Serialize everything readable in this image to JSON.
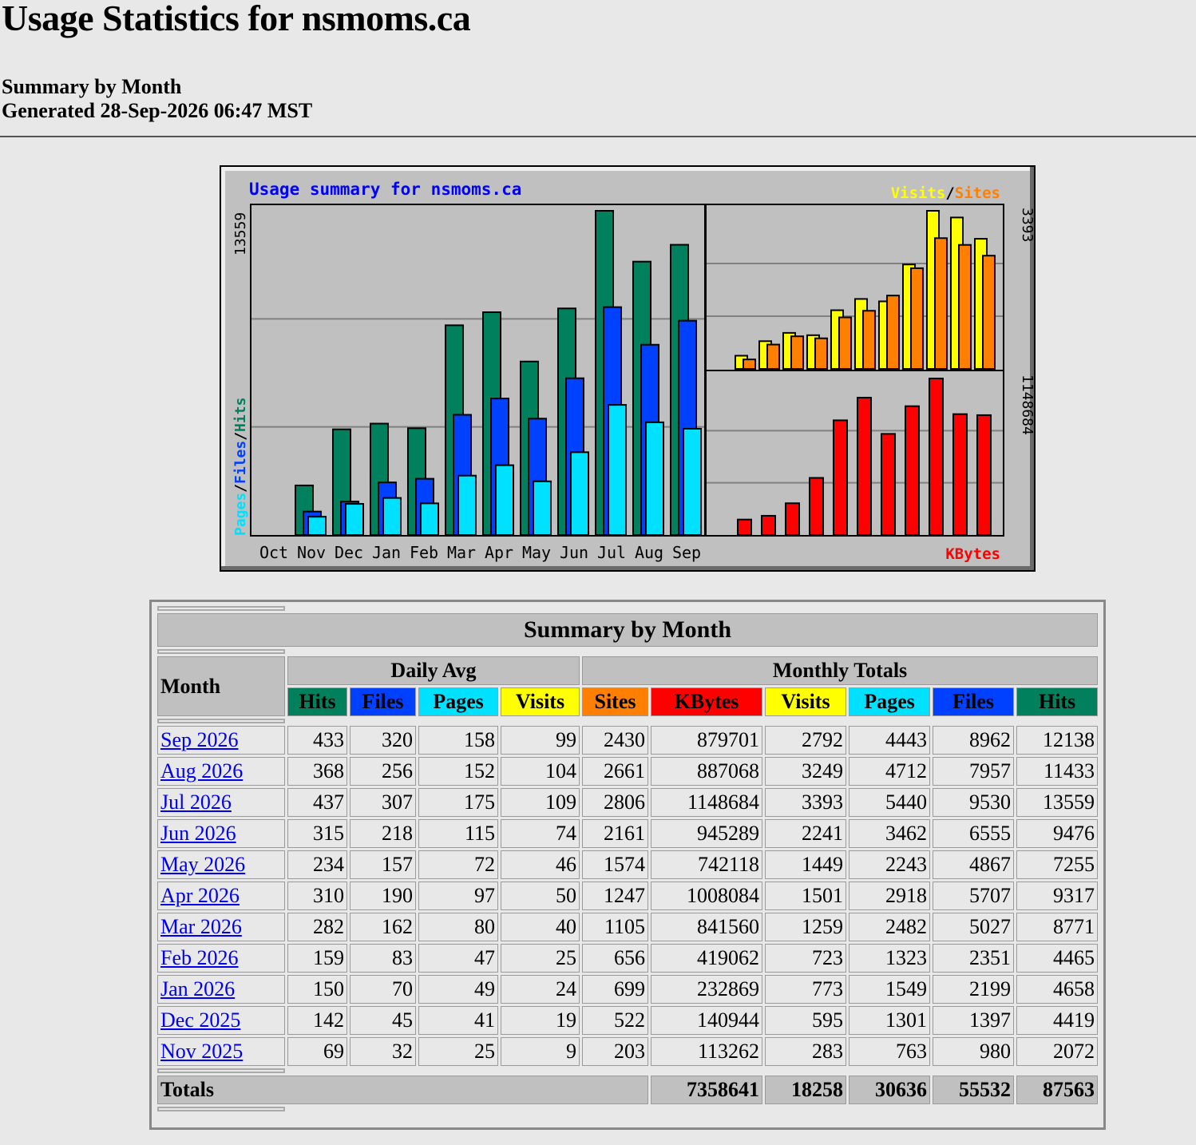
{
  "title": "Usage Statistics for nsmoms.ca",
  "subtitle": "Summary by Month",
  "generated": "Generated 28-Sep-2026 06:47 MST",
  "colors": {
    "hits": "#00805c",
    "files": "#0040ff",
    "pages": "#00e0ff",
    "visits": "#ffff00",
    "sites": "#ff8000",
    "kbytes": "#ff0000",
    "chart_bg": "#c0c0c0",
    "title_blue": "#0000ff"
  },
  "chart_data": {
    "type": "bar",
    "title": "Usage summary for nsmoms.ca",
    "categories": [
      "Oct",
      "Nov",
      "Dec",
      "Jan",
      "Feb",
      "Mar",
      "Apr",
      "May",
      "Jun",
      "Jul",
      "Aug",
      "Sep"
    ],
    "left_axis_max_label": "13559",
    "left_axis_legend": [
      "Pages",
      "/",
      "Files",
      "/",
      "Hits"
    ],
    "right_top_max_label": "3393",
    "right_top_legend": [
      "Visits",
      "/",
      "Sites"
    ],
    "right_bottom_max_label": "1148684",
    "right_bottom_legend": "KBytes",
    "left": {
      "ylim": [
        0,
        13559
      ],
      "series": [
        {
          "name": "Hits",
          "values": [
            0,
            2072,
            4419,
            4658,
            4465,
            8771,
            9317,
            7255,
            9476,
            13559,
            11433,
            12138
          ]
        },
        {
          "name": "Files",
          "values": [
            0,
            980,
            1397,
            2199,
            2351,
            5027,
            5707,
            4867,
            6555,
            9530,
            7957,
            8962
          ]
        },
        {
          "name": "Pages",
          "values": [
            0,
            763,
            1301,
            1549,
            1323,
            2482,
            2918,
            2243,
            3462,
            5440,
            4712,
            4443
          ]
        }
      ]
    },
    "right_top": {
      "ylim": [
        0,
        3393
      ],
      "series": [
        {
          "name": "Visits",
          "values": [
            0,
            283,
            595,
            773,
            723,
            1259,
            1501,
            1449,
            2241,
            3393,
            3249,
            2792
          ]
        },
        {
          "name": "Sites",
          "values": [
            0,
            203,
            522,
            699,
            656,
            1105,
            1247,
            1574,
            2161,
            2806,
            2661,
            2430
          ]
        }
      ]
    },
    "right_bottom": {
      "ylim": [
        0,
        1148684
      ],
      "series": [
        {
          "name": "KBytes",
          "values": [
            0,
            113262,
            140944,
            232869,
            419062,
            841560,
            1008084,
            742118,
            945289,
            1148684,
            887068,
            879701
          ]
        }
      ]
    }
  },
  "table": {
    "caption": "Summary by Month",
    "month_header": "Month",
    "daily_avg_header": "Daily Avg",
    "monthly_totals_header": "Monthly Totals",
    "columns": [
      "Hits",
      "Files",
      "Pages",
      "Visits",
      "Sites",
      "KBytes",
      "Visits",
      "Pages",
      "Files",
      "Hits"
    ],
    "rows": [
      {
        "month": "Sep 2026",
        "cells": [
          "433",
          "320",
          "158",
          "99",
          "2430",
          "879701",
          "2792",
          "4443",
          "8962",
          "12138"
        ]
      },
      {
        "month": "Aug 2026",
        "cells": [
          "368",
          "256",
          "152",
          "104",
          "2661",
          "887068",
          "3249",
          "4712",
          "7957",
          "11433"
        ]
      },
      {
        "month": "Jul 2026",
        "cells": [
          "437",
          "307",
          "175",
          "109",
          "2806",
          "1148684",
          "3393",
          "5440",
          "9530",
          "13559"
        ]
      },
      {
        "month": "Jun 2026",
        "cells": [
          "315",
          "218",
          "115",
          "74",
          "2161",
          "945289",
          "2241",
          "3462",
          "6555",
          "9476"
        ]
      },
      {
        "month": "May 2026",
        "cells": [
          "234",
          "157",
          "72",
          "46",
          "1574",
          "742118",
          "1449",
          "2243",
          "4867",
          "7255"
        ]
      },
      {
        "month": "Apr 2026",
        "cells": [
          "310",
          "190",
          "97",
          "50",
          "1247",
          "1008084",
          "1501",
          "2918",
          "5707",
          "9317"
        ]
      },
      {
        "month": "Mar 2026",
        "cells": [
          "282",
          "162",
          "80",
          "40",
          "1105",
          "841560",
          "1259",
          "2482",
          "5027",
          "8771"
        ]
      },
      {
        "month": "Feb 2026",
        "cells": [
          "159",
          "83",
          "47",
          "25",
          "656",
          "419062",
          "723",
          "1323",
          "2351",
          "4465"
        ]
      },
      {
        "month": "Jan 2026",
        "cells": [
          "150",
          "70",
          "49",
          "24",
          "699",
          "232869",
          "773",
          "1549",
          "2199",
          "4658"
        ]
      },
      {
        "month": "Dec 2025",
        "cells": [
          "142",
          "45",
          "41",
          "19",
          "522",
          "140944",
          "595",
          "1301",
          "1397",
          "4419"
        ]
      },
      {
        "month": "Nov 2025",
        "cells": [
          "69",
          "32",
          "25",
          "9",
          "203",
          "113262",
          "283",
          "763",
          "980",
          "2072"
        ]
      }
    ],
    "totals_label": "Totals",
    "totals": [
      "7358641",
      "18258",
      "30636",
      "55532",
      "87563"
    ]
  }
}
